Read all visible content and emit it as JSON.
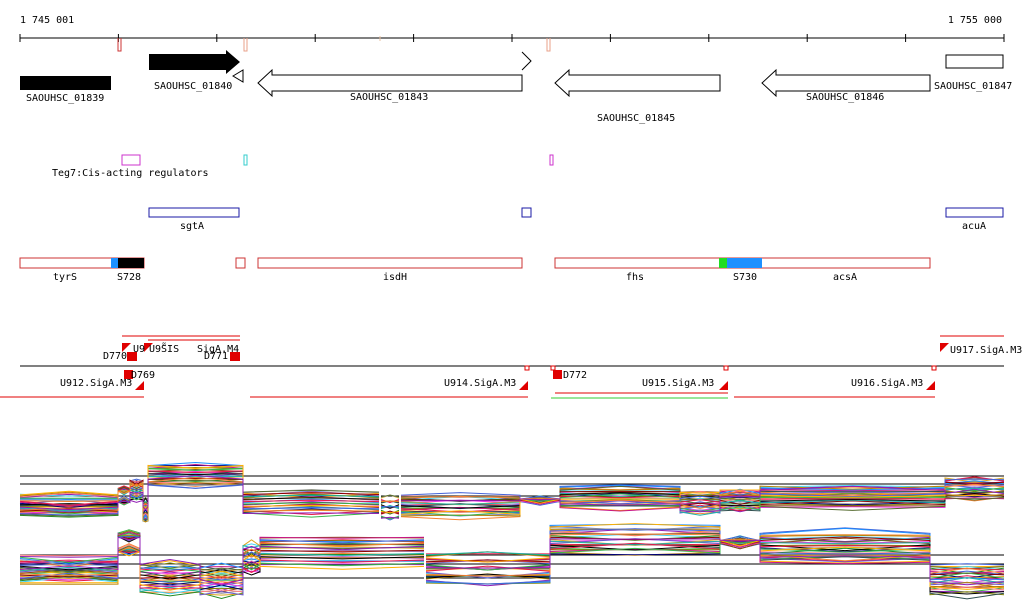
{
  "ruler": {
    "start_label": "1 745 001",
    "end_label": "1 755 000"
  },
  "colors": {
    "gene_fill": "#000000",
    "gene_outline": "#000000",
    "feature_outline": "#cc3333",
    "regulator_outline": "#cc33cc",
    "cyan_mark": "#33cccc",
    "navy_outline": "#1a1aa6",
    "transcript_red": "#e00000",
    "green_line": "#33cc33",
    "segment_blue": "#1e90ff",
    "segment_green": "#22dd22"
  },
  "genes": [
    {
      "id": "SAOUHSC_01839",
      "strand": "+",
      "filled": true
    },
    {
      "id": "SAOUHSC_01840",
      "strand": "+",
      "filled": true
    },
    {
      "id": "SAOUHSC_01843",
      "strand": "-",
      "filled": false
    },
    {
      "id": "SAOUHSC_01845",
      "strand": "-",
      "filled": false
    },
    {
      "id": "SAOUHSC_01846",
      "strand": "-",
      "filled": false
    },
    {
      "id": "SAOUHSC_01847",
      "strand": "+",
      "filled": false
    }
  ],
  "regulators": {
    "label": "Teg7:Cis-acting regulators"
  },
  "gene_names": [
    {
      "label": "sgtA"
    },
    {
      "label": "acuA"
    }
  ],
  "features": [
    {
      "label": "tyrS"
    },
    {
      "label": "S728"
    },
    {
      "label": "isdH"
    },
    {
      "label": "fhs"
    },
    {
      "label": "S730"
    },
    {
      "label": "acsA"
    }
  ],
  "transcripts": [
    {
      "label": "D770"
    },
    {
      "label": "U9"
    },
    {
      "label": "U9̃̃S̃IS"
    },
    {
      "label": "SigA.M4"
    },
    {
      "label": "D771"
    },
    {
      "label": "D769"
    },
    {
      "label": "U912.SigA.M3"
    },
    {
      "label": "U914.SigA.M3"
    },
    {
      "label": "D772"
    },
    {
      "label": "U915.SigA.M3"
    },
    {
      "label": "U916.SigA.M3"
    },
    {
      "label": "U917.SigA.M3"
    }
  ]
}
